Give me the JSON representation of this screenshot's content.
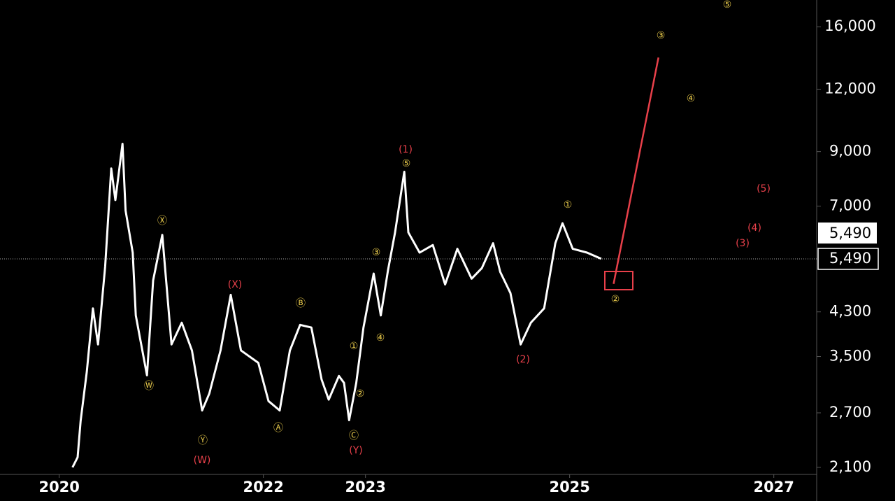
{
  "chart_data": {
    "type": "line",
    "log_scale": true,
    "x": [
      2020.13,
      2020.18,
      2020.21,
      2020.27,
      2020.33,
      2020.38,
      2020.45,
      2020.51,
      2020.55,
      2020.62,
      2020.65,
      2020.72,
      2020.75,
      2020.86,
      2020.92,
      2021.01,
      2021.1,
      2021.2,
      2021.3,
      2021.4,
      2021.47,
      2021.58,
      2021.68,
      2021.78,
      2021.95,
      2022.05,
      2022.16,
      2022.26,
      2022.36,
      2022.47,
      2022.57,
      2022.64,
      2022.74,
      2022.79,
      2022.84,
      2022.91,
      2022.98,
      2023.08,
      2023.15,
      2023.22,
      2023.29,
      2023.38,
      2023.42,
      2023.53,
      2023.66,
      2023.78,
      2023.9,
      2024.04,
      2024.14,
      2024.25,
      2024.32,
      2024.42,
      2024.52,
      2024.62,
      2024.75,
      2024.86,
      2024.93,
      2025.03,
      2025.17,
      2025.31
    ],
    "series": [
      {
        "color": "#ffffff",
        "values": [
          2100,
          2200,
          2600,
          3260,
          4370,
          3700,
          5300,
          8330,
          7200,
          9330,
          6860,
          5650,
          4230,
          3210,
          4970,
          6130,
          3700,
          4090,
          3600,
          2730,
          2950,
          3600,
          4650,
          3600,
          3400,
          2850,
          2730,
          3600,
          4050,
          4000,
          3150,
          2870,
          3200,
          3100,
          2610,
          3100,
          4000,
          5130,
          4230,
          5200,
          6200,
          8200,
          6200,
          5650,
          5850,
          4880,
          5750,
          5010,
          5260,
          5900,
          5170,
          4690,
          3700,
          4090,
          4370,
          5900,
          6470,
          5750,
          5650,
          5490
        ]
      },
      {
        "color": "#e8404a",
        "x": [
          2025.43,
          2025.87
        ],
        "values": [
          4890,
          13880
        ]
      }
    ],
    "xlim": [
      2019.42,
      2027.42
    ],
    "ylim": [
      2033,
      18100
    ],
    "xticks": [
      2020,
      2022,
      2023,
      2025,
      2027
    ],
    "yticks": [
      {
        "value": 2100,
        "label": "2,100"
      },
      {
        "value": 2700,
        "label": "2,700"
      },
      {
        "value": 3500,
        "label": "3,500"
      },
      {
        "value": 4300,
        "label": "4,300"
      },
      {
        "value": 7000,
        "label": "7,000"
      },
      {
        "value": 9000,
        "label": "9,000"
      },
      {
        "value": 12000,
        "label": "12,000"
      },
      {
        "value": 16000,
        "label": "16,000"
      }
    ],
    "last_price": {
      "value": 5490,
      "label": "5,490"
    },
    "annotations": [
      {
        "text": "Ⓧ",
        "color": "#e6c84a"
      },
      {
        "text": "Ⓦ",
        "color": "#e6c84a"
      },
      {
        "text": "Ⓨ",
        "color": "#e6c84a"
      },
      {
        "text": "(W)",
        "color": "#e8404a"
      },
      {
        "text": "(X)",
        "color": "#e8404a"
      },
      {
        "text": "Ⓑ",
        "color": "#e6c84a"
      },
      {
        "text": "Ⓐ",
        "color": "#e6c84a"
      },
      {
        "text": "Ⓒ",
        "color": "#e6c84a"
      },
      {
        "text": "(Y)",
        "color": "#e8404a"
      },
      {
        "text": "①",
        "color": "#e6c84a"
      },
      {
        "text": "②",
        "color": "#e6c84a"
      },
      {
        "text": "③",
        "color": "#e6c84a"
      },
      {
        "text": "④",
        "color": "#e6c84a"
      },
      {
        "text": "⑤",
        "color": "#e6c84a"
      },
      {
        "text": "(1)",
        "color": "#e8404a"
      },
      {
        "text": "(2)",
        "color": "#e8404a"
      },
      {
        "text": "①",
        "color": "#e6c84a"
      },
      {
        "text": "②",
        "color": "#e6c84a"
      },
      {
        "text": "③",
        "color": "#e6c84a"
      },
      {
        "text": "④",
        "color": "#e6c84a"
      },
      {
        "text": "⑤",
        "color": "#e6c84a"
      },
      {
        "text": "(3)",
        "color": "#e8404a"
      },
      {
        "text": "(4)",
        "color": "#e8404a"
      },
      {
        "text": "(5)",
        "color": "#e8404a"
      }
    ]
  }
}
